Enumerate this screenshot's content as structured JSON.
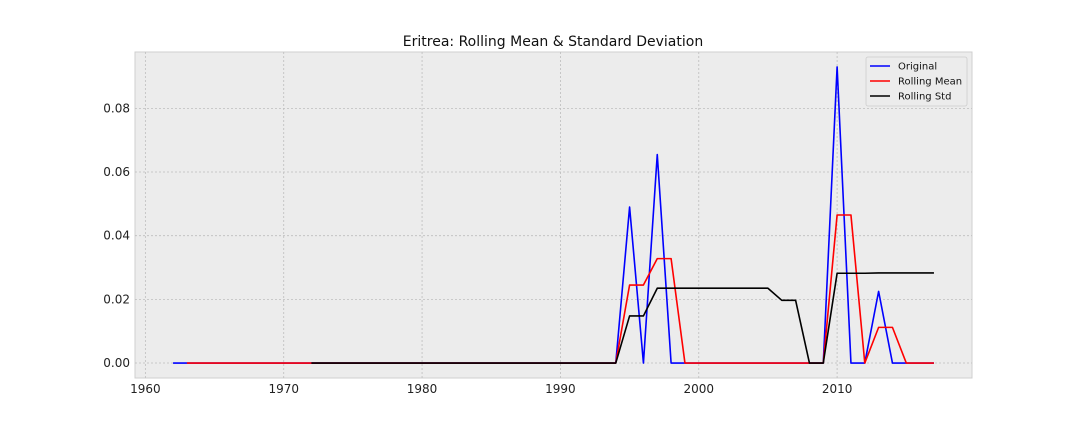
{
  "chart_data": {
    "type": "line",
    "title": "Eritrea: Rolling Mean & Standard Deviation",
    "xlabel": "",
    "ylabel": "",
    "xlim": [
      1959.25,
      2019.75
    ],
    "ylim": [
      -0.0047,
      0.0977
    ],
    "xticks": [
      1960,
      1970,
      1980,
      1990,
      2000,
      2010
    ],
    "xtick_labels": [
      "1960",
      "1970",
      "1980",
      "1990",
      "2000",
      "2010"
    ],
    "yticks": [
      0.0,
      0.02,
      0.04,
      0.06,
      0.08
    ],
    "ytick_labels": [
      "0.00",
      "0.02",
      "0.04",
      "0.06",
      "0.08"
    ],
    "grid": true,
    "legend_position": "top-right",
    "series": [
      {
        "name": "Original",
        "color": "#0000ff",
        "x": [
          1962,
          1963,
          1964,
          1965,
          1966,
          1967,
          1968,
          1969,
          1970,
          1971,
          1972,
          1973,
          1974,
          1975,
          1976,
          1977,
          1978,
          1979,
          1980,
          1981,
          1982,
          1983,
          1984,
          1985,
          1986,
          1987,
          1988,
          1989,
          1990,
          1991,
          1992,
          1993,
          1994,
          1995,
          1996,
          1997,
          1998,
          1999,
          2000,
          2001,
          2002,
          2003,
          2004,
          2005,
          2006,
          2007,
          2008,
          2009,
          2010,
          2011,
          2012,
          2013,
          2014,
          2015,
          2016,
          2017
        ],
        "y": [
          0,
          0,
          0,
          0,
          0,
          0,
          0,
          0,
          0,
          0,
          0,
          0,
          0,
          0,
          0,
          0,
          0,
          0,
          0,
          0,
          0,
          0,
          0,
          0,
          0,
          0,
          0,
          0,
          0,
          0,
          0,
          0,
          0,
          0.049,
          0,
          0.0655,
          0,
          0,
          0,
          0,
          0,
          0,
          0,
          0,
          0,
          0,
          0,
          0,
          0.093,
          0,
          0,
          0.0225,
          0,
          0,
          0,
          0
        ]
      },
      {
        "name": "Rolling Mean",
        "color": "#ff0000",
        "x": [
          1963,
          1964,
          1965,
          1966,
          1967,
          1968,
          1969,
          1970,
          1971,
          1972,
          1973,
          1974,
          1975,
          1976,
          1977,
          1978,
          1979,
          1980,
          1981,
          1982,
          1983,
          1984,
          1985,
          1986,
          1987,
          1988,
          1989,
          1990,
          1991,
          1992,
          1993,
          1994,
          1995,
          1996,
          1997,
          1998,
          1999,
          2000,
          2001,
          2002,
          2003,
          2004,
          2005,
          2006,
          2007,
          2008,
          2009,
          2010,
          2011,
          2012,
          2013,
          2014,
          2015,
          2016,
          2017
        ],
        "y": [
          0,
          0,
          0,
          0,
          0,
          0,
          0,
          0,
          0,
          0,
          0,
          0,
          0,
          0,
          0,
          0,
          0,
          0,
          0,
          0,
          0,
          0,
          0,
          0,
          0,
          0,
          0,
          0,
          0,
          0,
          0,
          0,
          0.0245,
          0.0245,
          0.0328,
          0.0328,
          0,
          0,
          0,
          0,
          0,
          0,
          0,
          0,
          0,
          0,
          0,
          0.0465,
          0.0465,
          0,
          0.0112,
          0.0112,
          0,
          0,
          0
        ]
      },
      {
        "name": "Rolling Std",
        "color": "#000000",
        "x": [
          1972,
          1973,
          1974,
          1975,
          1976,
          1977,
          1978,
          1979,
          1980,
          1981,
          1982,
          1983,
          1984,
          1985,
          1986,
          1987,
          1988,
          1989,
          1990,
          1991,
          1992,
          1993,
          1994,
          1995,
          1996,
          1997,
          1998,
          1999,
          2000,
          2001,
          2002,
          2003,
          2004,
          2005,
          2006,
          2007,
          2008,
          2009,
          2010,
          2011,
          2012,
          2013,
          2014,
          2015,
          2016,
          2017
        ],
        "y": [
          0,
          0,
          0,
          0,
          0,
          0,
          0,
          0,
          0,
          0,
          0,
          0,
          0,
          0,
          0,
          0,
          0,
          0,
          0,
          0,
          0,
          0,
          0,
          0.0148,
          0.0148,
          0.0235,
          0.0235,
          0.0235,
          0.0235,
          0.0235,
          0.0235,
          0.0235,
          0.0235,
          0.0235,
          0.0197,
          0.0197,
          0,
          0,
          0.0282,
          0.0282,
          0.0282,
          0.0283,
          0.0283,
          0.0283,
          0.0283,
          0.0283
        ]
      }
    ]
  }
}
